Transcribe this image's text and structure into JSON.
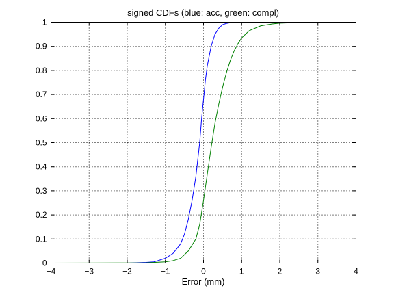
{
  "chart_data": {
    "type": "line",
    "title": "signed CDFs (blue: acc, green: compl)",
    "xlabel": "Error (mm)",
    "ylabel": "",
    "xlim": [
      -4,
      4
    ],
    "ylim": [
      0,
      1
    ],
    "xticks": [
      -4,
      -3,
      -2,
      -1,
      0,
      1,
      2,
      3,
      4
    ],
    "xtick_labels": [
      "−4",
      "−3",
      "−2",
      "−1",
      "0",
      "1",
      "2",
      "3",
      "4"
    ],
    "yticks": [
      0,
      0.1,
      0.2,
      0.3,
      0.4,
      0.5,
      0.6,
      0.7,
      0.8,
      0.9,
      1
    ],
    "ytick_labels": [
      "0",
      "0.1",
      "0.2",
      "0.3",
      "0.4",
      "0.5",
      "0.6",
      "0.7",
      "0.8",
      "0.9",
      "1"
    ],
    "grid": true,
    "series": [
      {
        "color": "#0000ff",
        "x": [
          -4,
          -2.0,
          -1.5,
          -1.3,
          -1.2,
          -1.0,
          -0.8,
          -0.6,
          -0.5,
          -0.4,
          -0.3,
          -0.2,
          -0.15,
          -0.1,
          -0.05,
          0,
          0.05,
          0.1,
          0.15,
          0.2,
          0.3,
          0.4,
          0.5,
          0.6,
          0.7,
          0.8,
          0.9,
          1.0,
          1.5,
          2.3
        ],
        "y": [
          0,
          0,
          0.003,
          0.005,
          0.01,
          0.02,
          0.04,
          0.08,
          0.12,
          0.18,
          0.26,
          0.36,
          0.43,
          0.5,
          0.6,
          0.68,
          0.76,
          0.82,
          0.86,
          0.9,
          0.95,
          0.975,
          0.99,
          0.995,
          0.998,
          1,
          1,
          1,
          1,
          1
        ]
      },
      {
        "color": "#008000",
        "x": [
          -4,
          -1.5,
          -1.0,
          -0.8,
          -0.6,
          -0.4,
          -0.2,
          -0.1,
          0,
          0.1,
          0.2,
          0.3,
          0.4,
          0.5,
          0.6,
          0.7,
          0.8,
          0.9,
          1.0,
          1.2,
          1.5,
          1.8,
          2.0,
          2.5,
          3.0,
          4.0
        ],
        "y": [
          0,
          0.001,
          0.005,
          0.01,
          0.02,
          0.05,
          0.1,
          0.16,
          0.26,
          0.37,
          0.48,
          0.58,
          0.66,
          0.73,
          0.79,
          0.84,
          0.88,
          0.91,
          0.935,
          0.965,
          0.985,
          0.993,
          0.996,
          0.999,
          1,
          1
        ]
      }
    ]
  }
}
